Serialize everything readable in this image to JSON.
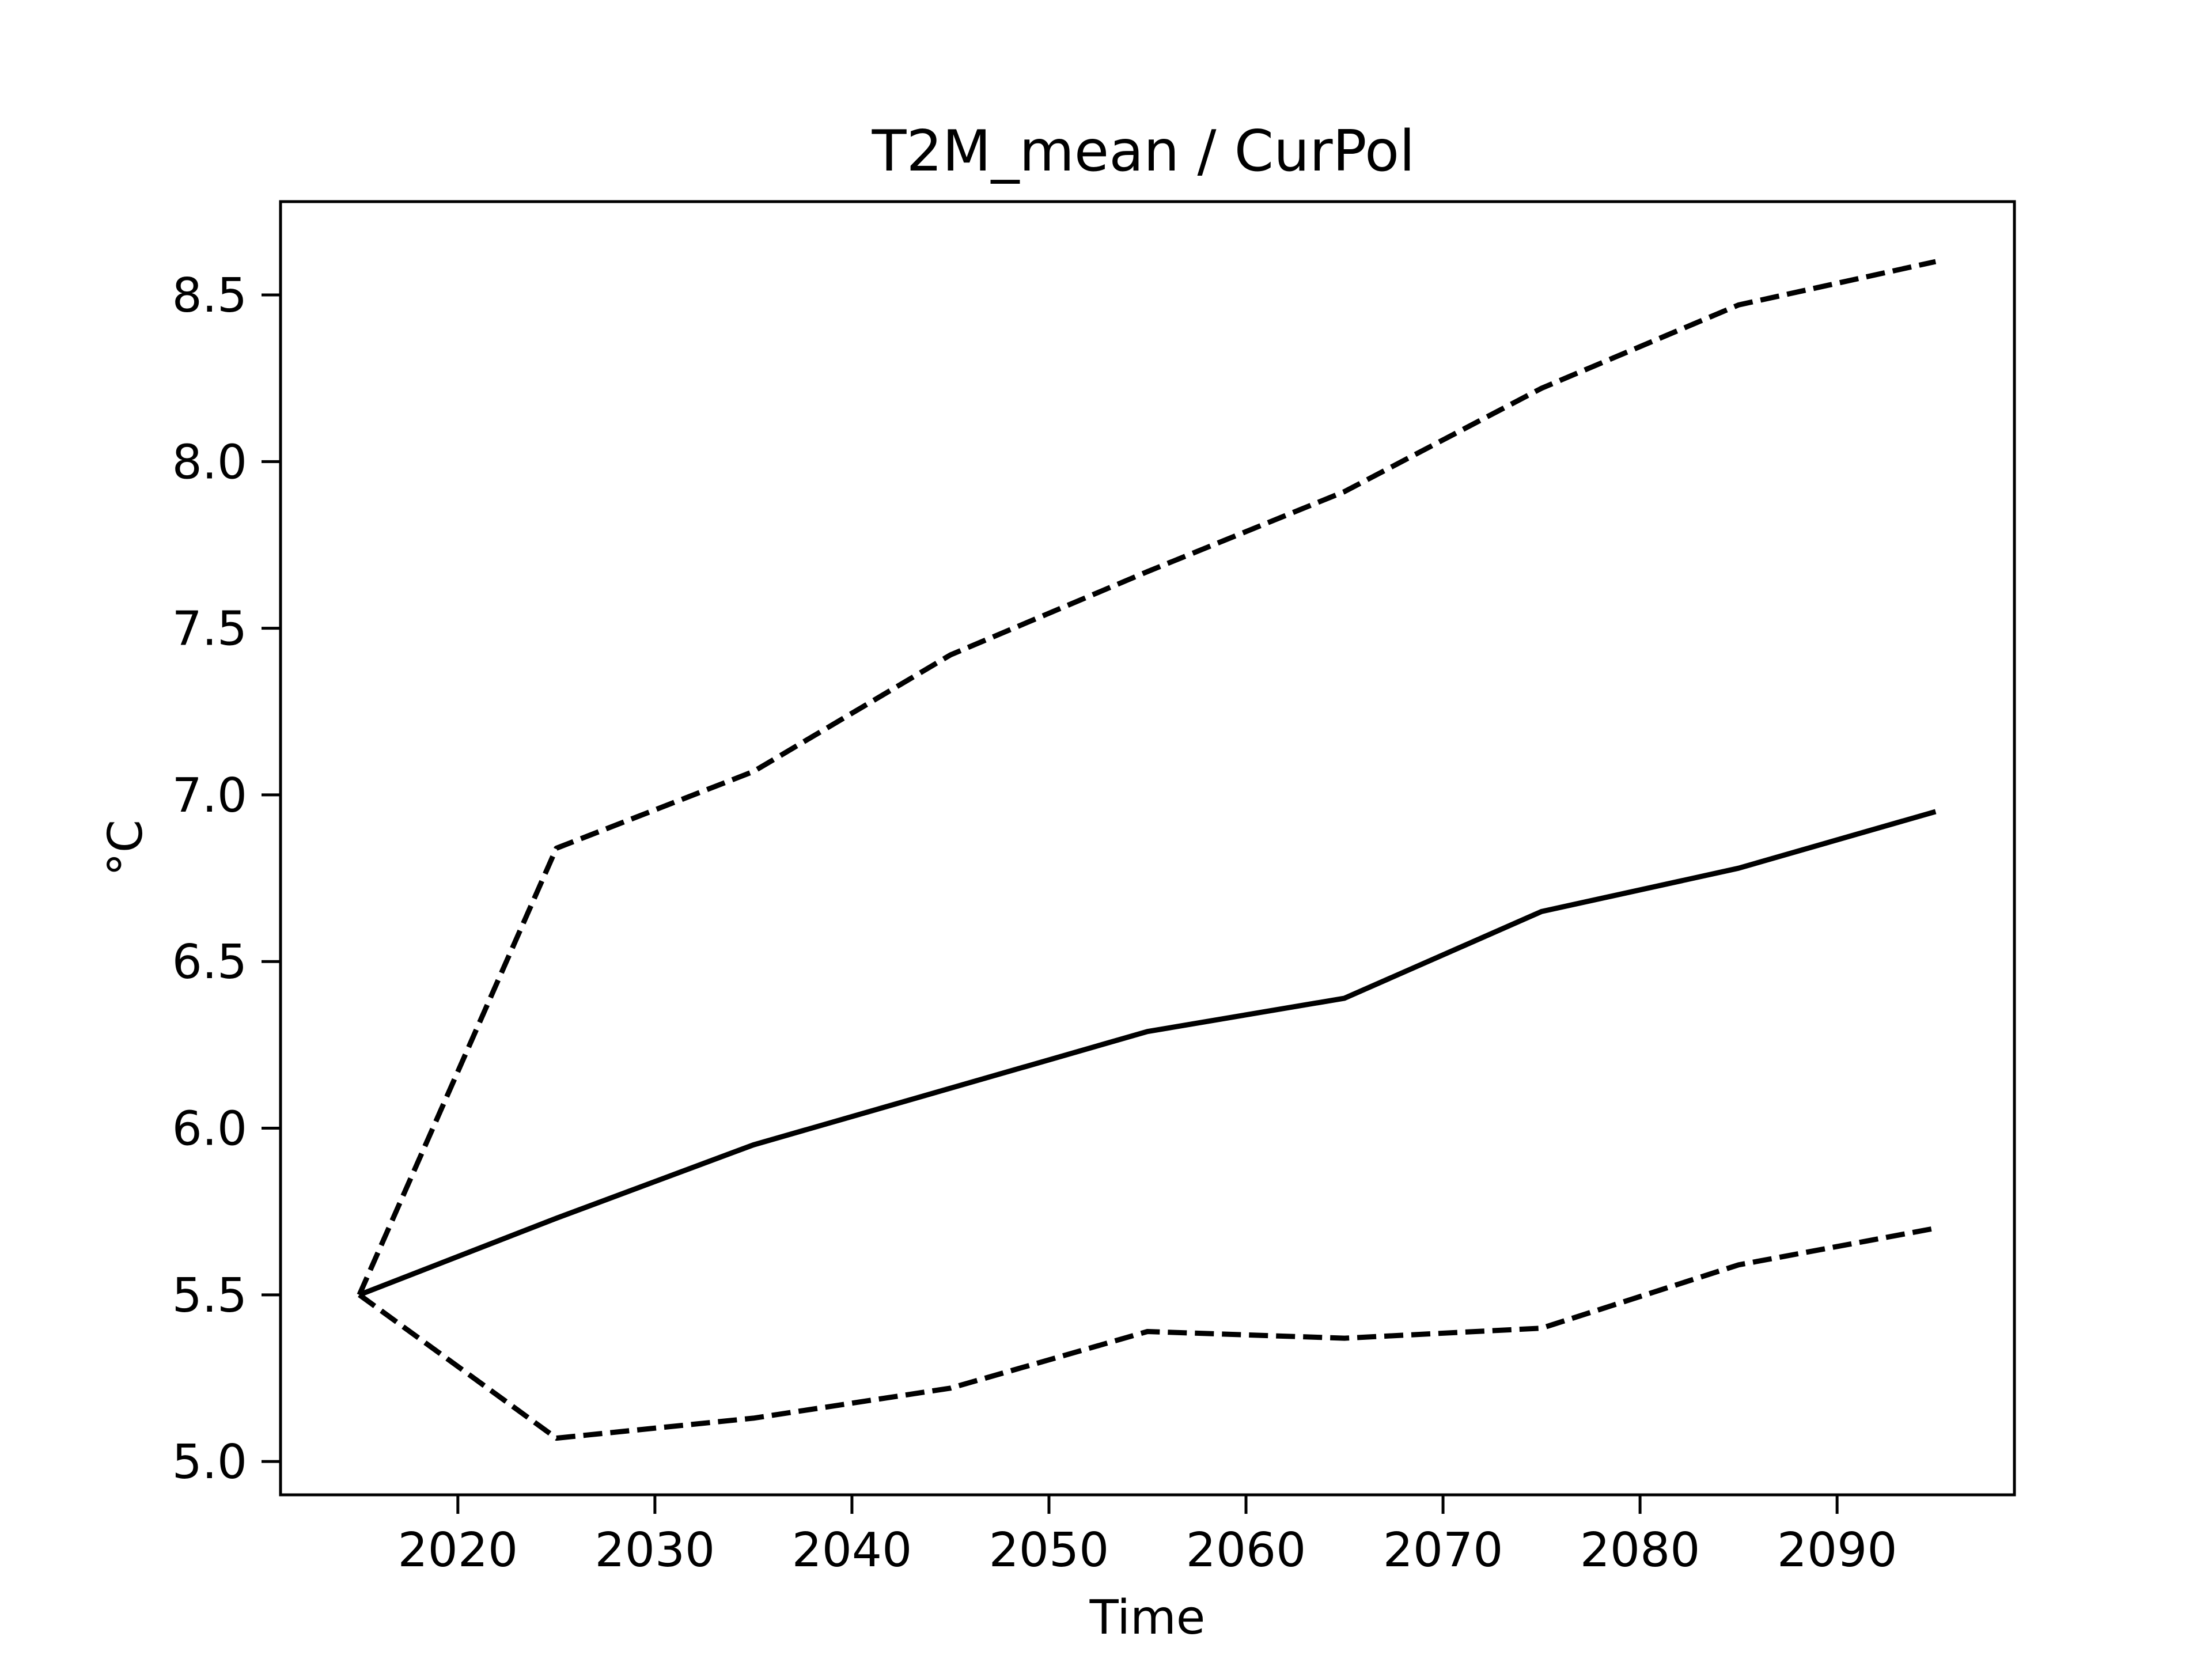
{
  "chart_data": {
    "type": "line",
    "title": "T2M_mean / CurPol",
    "xlabel": "Time",
    "ylabel": "°C",
    "xlim": [
      2011,
      2099
    ],
    "ylim": [
      4.9,
      8.78
    ],
    "xticks": [
      2020,
      2030,
      2040,
      2050,
      2060,
      2070,
      2080,
      2090
    ],
    "yticks": [
      5.0,
      5.5,
      6.0,
      6.5,
      7.0,
      7.5,
      8.0,
      8.5
    ],
    "grid": false,
    "legend": "none",
    "x": [
      2015,
      2025,
      2035,
      2045,
      2055,
      2065,
      2075,
      2085,
      2095
    ],
    "series": [
      {
        "style": "dashed",
        "color": "#000000",
        "values": [
          5.5,
          6.84,
          7.07,
          7.42,
          7.67,
          7.91,
          8.22,
          8.47,
          8.6
        ]
      },
      {
        "style": "solid",
        "color": "#000000",
        "values": [
          5.5,
          5.73,
          5.95,
          6.12,
          6.29,
          6.39,
          6.65,
          6.78,
          6.95
        ]
      },
      {
        "style": "dashed",
        "color": "#000000",
        "values": [
          5.5,
          5.07,
          5.13,
          5.22,
          5.39,
          5.37,
          5.4,
          5.59,
          5.7
        ]
      }
    ]
  }
}
